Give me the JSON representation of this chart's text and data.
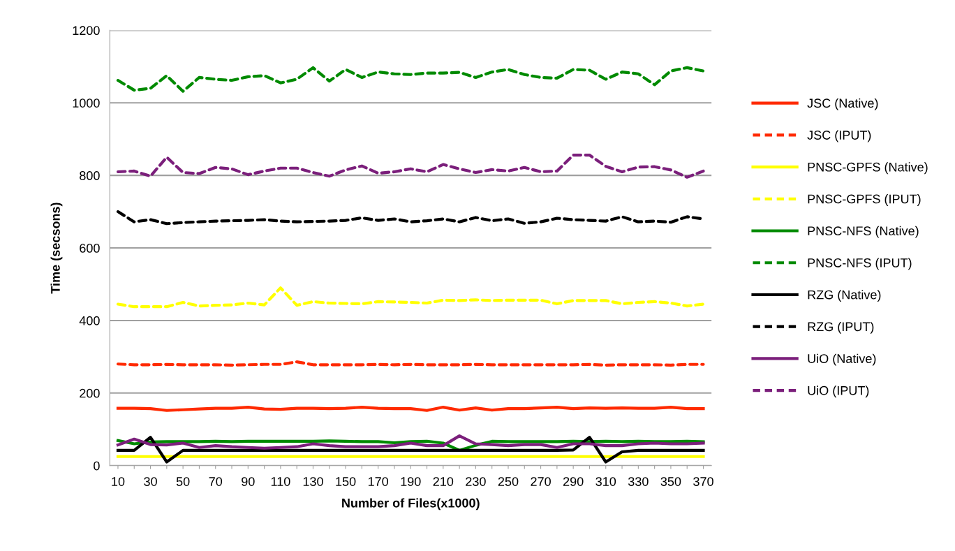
{
  "chart_data": {
    "type": "line",
    "xlabel": "Number of Files(x1000)",
    "ylabel": "Time (secsons)",
    "categories": [
      "10",
      null,
      "30",
      null,
      "50",
      null,
      "70",
      null,
      "90",
      null,
      "110",
      null,
      "130",
      null,
      "150",
      null,
      "170",
      null,
      "190",
      null,
      "210",
      null,
      "230",
      null,
      "250",
      null,
      "270",
      null,
      "290",
      null,
      "310",
      null,
      "330",
      null,
      "350",
      null,
      "370"
    ],
    "ylim": [
      0,
      1200
    ],
    "yticks": [
      0,
      200,
      400,
      600,
      800,
      1000,
      1200
    ],
    "grid": "y",
    "legend": "right",
    "marker": "none",
    "series": [
      {
        "name": "JSC (Native)",
        "color": "#ff2a00",
        "line_style": "solid",
        "values": [
          158,
          158,
          157,
          152,
          154,
          156,
          158,
          158,
          161,
          156,
          155,
          158,
          158,
          157,
          158,
          161,
          158,
          157,
          157,
          152,
          161,
          153,
          159,
          153,
          157,
          157,
          159,
          161,
          157,
          159,
          158,
          159,
          158,
          158,
          161,
          157,
          157
        ]
      },
      {
        "name": "JSC (IPUT)",
        "color": "#ff2a00",
        "line_style": "dashed",
        "values": [
          280,
          278,
          278,
          279,
          278,
          278,
          278,
          277,
          278,
          279,
          279,
          286,
          278,
          278,
          278,
          278,
          279,
          278,
          279,
          278,
          278,
          278,
          279,
          278,
          278,
          278,
          278,
          278,
          278,
          279,
          277,
          278,
          278,
          278,
          277,
          279,
          279
        ]
      },
      {
        "name": "PNSC-GPFS (Native)",
        "color": "#ffff00",
        "line_style": "solid",
        "values": [
          25,
          25,
          25,
          25,
          25,
          25,
          25,
          25,
          25,
          25,
          25,
          25,
          25,
          25,
          25,
          25,
          25,
          25,
          25,
          25,
          25,
          25,
          25,
          25,
          25,
          25,
          25,
          25,
          25,
          25,
          25,
          25,
          25,
          25,
          25,
          25,
          25
        ]
      },
      {
        "name": "PNSC-GPFS (IPUT)",
        "color": "#ffff00",
        "line_style": "dashed",
        "values": [
          445,
          438,
          438,
          438,
          450,
          440,
          442,
          443,
          448,
          443,
          490,
          442,
          452,
          448,
          447,
          446,
          452,
          451,
          450,
          448,
          456,
          455,
          457,
          455,
          456,
          456,
          456,
          446,
          455,
          455,
          455,
          446,
          450,
          452,
          448,
          440,
          445
        ]
      },
      {
        "name": "PNSC-NFS (Native)",
        "color": "#008a00",
        "line_style": "solid",
        "values": [
          69,
          60,
          65,
          66,
          66,
          66,
          67,
          66,
          67,
          67,
          67,
          67,
          67,
          68,
          67,
          66,
          66,
          63,
          66,
          67,
          62,
          42,
          56,
          67,
          66,
          66,
          66,
          66,
          67,
          66,
          67,
          66,
          67,
          66,
          66,
          67,
          66
        ]
      },
      {
        "name": "PNSC-NFS (IPUT)",
        "color": "#008a00",
        "line_style": "dashed",
        "values": [
          1062,
          1035,
          1040,
          1075,
          1032,
          1070,
          1065,
          1062,
          1072,
          1075,
          1055,
          1065,
          1097,
          1060,
          1092,
          1070,
          1085,
          1080,
          1078,
          1082,
          1082,
          1084,
          1070,
          1085,
          1092,
          1078,
          1070,
          1068,
          1092,
          1090,
          1065,
          1085,
          1080,
          1050,
          1088,
          1097,
          1088
        ]
      },
      {
        "name": "RZG (Native)",
        "color": "#000000",
        "line_style": "solid",
        "values": [
          42,
          42,
          78,
          10,
          42,
          42,
          42,
          42,
          42,
          42,
          42,
          42,
          42,
          42,
          42,
          42,
          42,
          42,
          42,
          42,
          42,
          42,
          42,
          42,
          42,
          42,
          42,
          42,
          43,
          78,
          10,
          38,
          42,
          42,
          42,
          42,
          42
        ]
      },
      {
        "name": "RZG (IPUT)",
        "color": "#000000",
        "line_style": "dashed",
        "values": [
          700,
          672,
          678,
          667,
          670,
          672,
          674,
          675,
          676,
          678,
          674,
          672,
          673,
          674,
          676,
          683,
          676,
          680,
          672,
          675,
          680,
          672,
          684,
          675,
          680,
          668,
          672,
          682,
          678,
          676,
          674,
          686,
          672,
          674,
          671,
          686,
          680
        ]
      },
      {
        "name": "UiO (Native)",
        "color": "#7b1f7b",
        "line_style": "solid",
        "values": [
          57,
          73,
          58,
          57,
          62,
          50,
          55,
          52,
          50,
          48,
          50,
          52,
          60,
          55,
          52,
          52,
          52,
          55,
          62,
          55,
          55,
          82,
          60,
          58,
          55,
          58,
          58,
          50,
          60,
          60,
          55,
          55,
          60,
          62,
          60,
          60,
          62
        ]
      },
      {
        "name": "UiO (IPUT)",
        "color": "#7b1f7b",
        "line_style": "dashed",
        "values": [
          810,
          812,
          798,
          850,
          808,
          805,
          822,
          818,
          802,
          812,
          820,
          820,
          808,
          798,
          815,
          826,
          806,
          810,
          818,
          810,
          830,
          818,
          808,
          816,
          812,
          822,
          810,
          812,
          856,
          856,
          825,
          810,
          823,
          824,
          815,
          795,
          812
        ]
      }
    ]
  }
}
